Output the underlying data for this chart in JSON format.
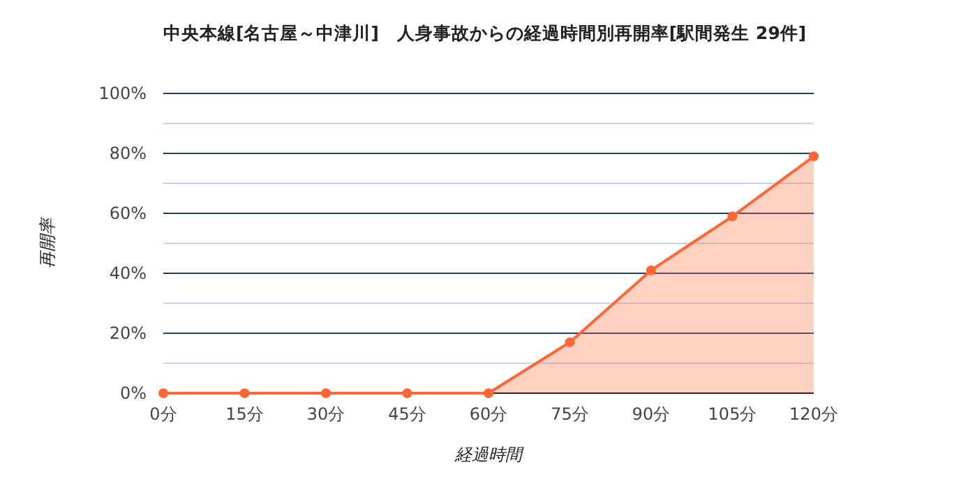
{
  "chart_data": {
    "type": "area",
    "title": "中央本線[名古屋～中津川]　人身事故からの経過時間別再開率[駅間発生 29件]",
    "xlabel": "経過時間",
    "ylabel": "再開率",
    "categories": [
      "0分",
      "15分",
      "30分",
      "45分",
      "60分",
      "75分",
      "90分",
      "105分",
      "120分"
    ],
    "values": [
      0,
      0,
      0,
      0,
      0,
      17,
      41,
      59,
      79
    ],
    "color": "#ff6633",
    "ylim": [
      0,
      100
    ],
    "yticks": [
      {
        "value": 0,
        "label": "0%"
      },
      {
        "value": 10,
        "label": null
      },
      {
        "value": 20,
        "label": "20%"
      },
      {
        "value": 30,
        "label": null
      },
      {
        "value": 40,
        "label": "40%"
      },
      {
        "value": 50,
        "label": null
      },
      {
        "value": 60,
        "label": "60%"
      },
      {
        "value": 70,
        "label": null
      },
      {
        "value": 80,
        "label": "80%"
      },
      {
        "value": 90,
        "label": null
      },
      {
        "value": 100,
        "label": "100%"
      }
    ],
    "grid": "y",
    "marker": "circle"
  }
}
